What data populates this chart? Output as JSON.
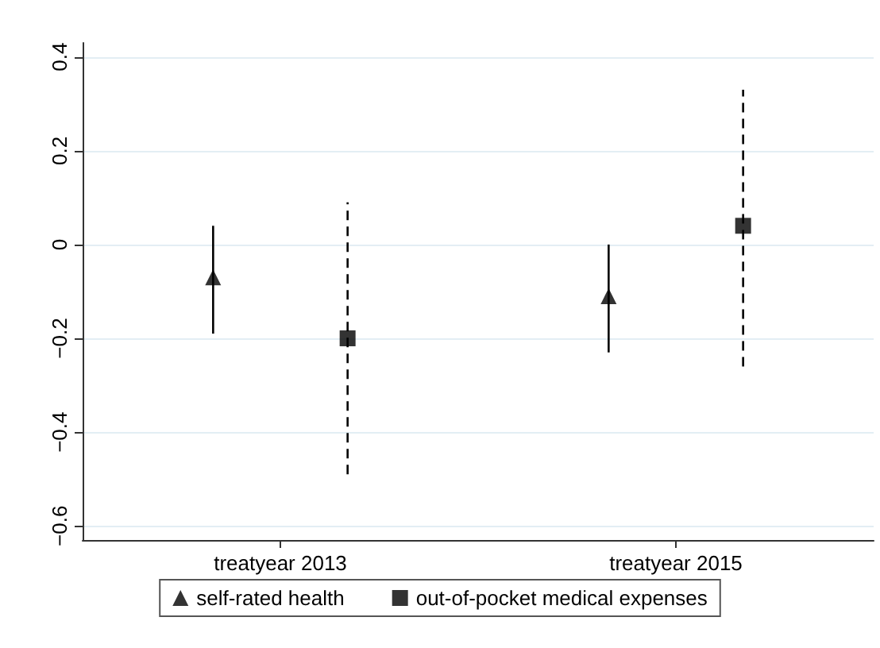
{
  "chart_data": {
    "type": "scatter",
    "categories": [
      "treatyear 2013",
      "treatyear 2015"
    ],
    "series": [
      {
        "name": "self-rated health",
        "color": "#000000",
        "marker": "triangle",
        "line_style": "solid",
        "values": [
          -0.07,
          -0.11
        ],
        "errors": [
          [
            -0.19,
            0.04
          ],
          [
            -0.23,
            0.0
          ]
        ]
      },
      {
        "name": "out-of-pocket medical expenses",
        "color": "#000000",
        "marker": "square",
        "line_style": "dashed",
        "values": [
          -0.2,
          0.04
        ],
        "errors": [
          [
            -0.49,
            0.09
          ],
          [
            -0.26,
            0.33
          ]
        ]
      }
    ],
    "ylim": [
      -0.63,
      0.43
    ],
    "yticks": [
      -0.6,
      -0.4,
      -0.2,
      0,
      0.2,
      0.4
    ],
    "grid": "y",
    "legend": "bottom"
  }
}
